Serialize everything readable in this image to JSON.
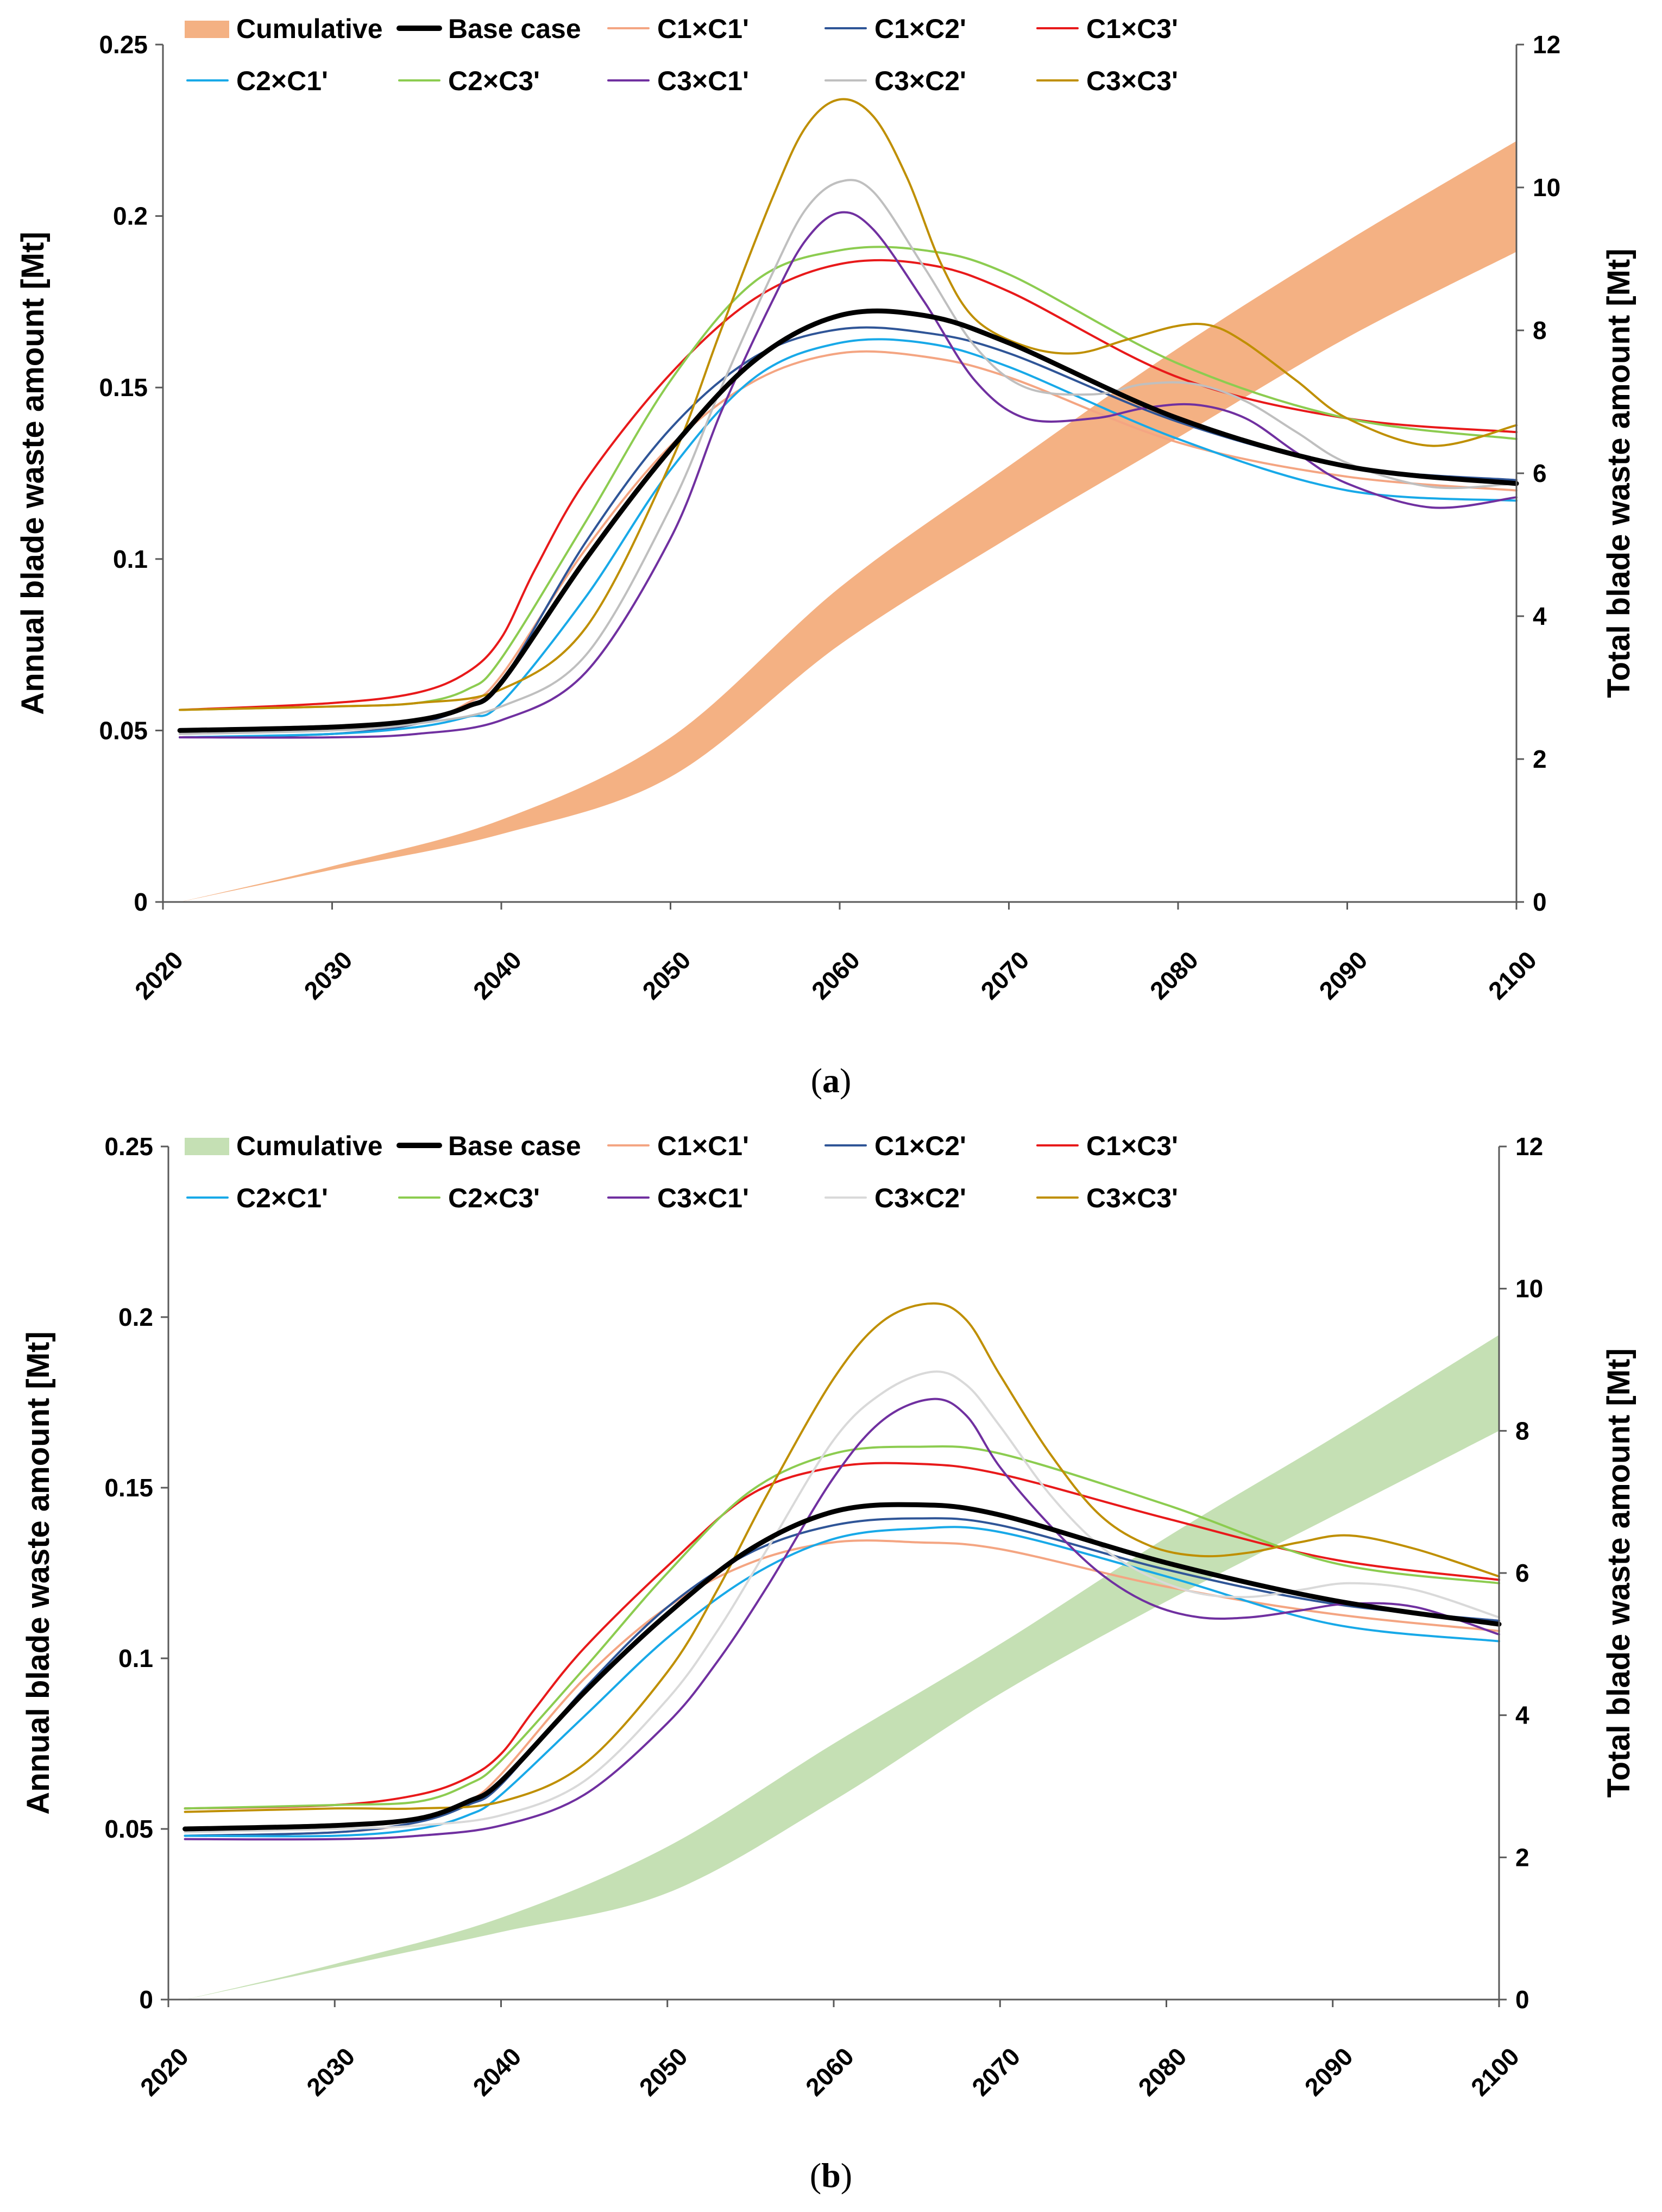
{
  "chart_data": [
    {
      "type": "line",
      "panel": "a",
      "caption_open": "(",
      "caption_letter": "a",
      "caption_close": ")",
      "ylabel_left": "Annual blade waste amount [Mt]",
      "ylabel_right": "Total blade waste amount [Mt]",
      "xlim": [
        2020,
        2100
      ],
      "x_ticks": [
        "2020",
        "2030",
        "2040",
        "2050",
        "2060",
        "2070",
        "2080",
        "2090",
        "2100"
      ],
      "ylim_left": [
        0,
        0.25
      ],
      "y_ticks_left": [
        "0",
        "0.05",
        "0.1",
        "0.15",
        "0.2",
        "0.25"
      ],
      "ylim_right": [
        0,
        12
      ],
      "y_ticks_right": [
        "0",
        "2",
        "4",
        "6",
        "8",
        "10",
        "12"
      ],
      "cumulative": {
        "name": "Cumulative",
        "color": "#f4b183",
        "x": [
          2021,
          2030,
          2040,
          2050,
          2060,
          2070,
          2080,
          2090,
          2100
        ],
        "lower": [
          0.0,
          0.45,
          0.95,
          1.75,
          3.6,
          5.1,
          6.5,
          7.9,
          9.1
        ],
        "upper": [
          0.0,
          0.5,
          1.15,
          2.3,
          4.4,
          6.1,
          7.75,
          9.25,
          10.65
        ]
      },
      "series": [
        {
          "name": "Base case",
          "color": "#000000",
          "width": 9,
          "x": [
            2021,
            2030,
            2035,
            2038,
            2040,
            2045,
            2050,
            2055,
            2060,
            2065,
            2070,
            2080,
            2090,
            2100
          ],
          "values": [
            0.05,
            0.051,
            0.053,
            0.057,
            0.064,
            0.1,
            0.132,
            0.158,
            0.171,
            0.171,
            0.163,
            0.141,
            0.127,
            0.122
          ]
        },
        {
          "name": "C1×C1'",
          "color": "#f4a582",
          "width": 4,
          "x": [
            2021,
            2030,
            2035,
            2038,
            2040,
            2045,
            2050,
            2055,
            2060,
            2065,
            2070,
            2080,
            2090,
            2100
          ],
          "values": [
            0.048,
            0.049,
            0.052,
            0.058,
            0.066,
            0.103,
            0.133,
            0.152,
            0.16,
            0.159,
            0.153,
            0.134,
            0.124,
            0.12
          ]
        },
        {
          "name": "C1×C2'",
          "color": "#2f5597",
          "width": 4,
          "x": [
            2021,
            2030,
            2035,
            2038,
            2040,
            2045,
            2050,
            2055,
            2060,
            2065,
            2070,
            2080,
            2090,
            2100
          ],
          "values": [
            0.048,
            0.049,
            0.052,
            0.057,
            0.064,
            0.105,
            0.138,
            0.159,
            0.167,
            0.166,
            0.16,
            0.14,
            0.127,
            0.123
          ]
        },
        {
          "name": "C1×C3'",
          "color": "#e8191a",
          "width": 4,
          "x": [
            2021,
            2030,
            2035,
            2038,
            2040,
            2042,
            2045,
            2050,
            2055,
            2060,
            2065,
            2070,
            2080,
            2090,
            2100
          ],
          "values": [
            0.056,
            0.058,
            0.061,
            0.067,
            0.077,
            0.097,
            0.123,
            0.154,
            0.176,
            0.186,
            0.186,
            0.178,
            0.153,
            0.141,
            0.137
          ]
        },
        {
          "name": "C2×C1'",
          "color": "#18a9e8",
          "width": 4,
          "x": [
            2021,
            2030,
            2035,
            2038,
            2040,
            2045,
            2050,
            2055,
            2060,
            2065,
            2070,
            2080,
            2090,
            2100
          ],
          "values": [
            0.048,
            0.049,
            0.051,
            0.054,
            0.058,
            0.089,
            0.126,
            0.153,
            0.163,
            0.163,
            0.156,
            0.135,
            0.12,
            0.117
          ]
        },
        {
          "name": "C2×C3'",
          "color": "#8ccc50",
          "width": 4,
          "x": [
            2021,
            2030,
            2035,
            2038,
            2040,
            2045,
            2050,
            2055,
            2060,
            2065,
            2070,
            2080,
            2090,
            2100
          ],
          "values": [
            0.056,
            0.057,
            0.058,
            0.062,
            0.071,
            0.111,
            0.152,
            0.181,
            0.19,
            0.19,
            0.183,
            0.157,
            0.141,
            0.135
          ]
        },
        {
          "name": "C3×C1'",
          "color": "#7030a0",
          "width": 4,
          "x": [
            2021,
            2030,
            2035,
            2040,
            2045,
            2050,
            2053,
            2056,
            2058,
            2060,
            2062,
            2065,
            2068,
            2071,
            2075,
            2078,
            2081,
            2084,
            2087,
            2090,
            2095,
            2100
          ],
          "values": [
            0.048,
            0.048,
            0.049,
            0.053,
            0.067,
            0.106,
            0.143,
            0.175,
            0.193,
            0.201,
            0.196,
            0.175,
            0.152,
            0.141,
            0.141,
            0.144,
            0.145,
            0.141,
            0.131,
            0.122,
            0.115,
            0.118
          ]
        },
        {
          "name": "C3×C2'",
          "color": "#bfbfbf",
          "width": 4,
          "x": [
            2021,
            2030,
            2035,
            2040,
            2045,
            2050,
            2053,
            2056,
            2058,
            2060,
            2062,
            2065,
            2068,
            2071,
            2075,
            2078,
            2081,
            2084,
            2087,
            2090,
            2095,
            2100
          ],
          "values": [
            0.049,
            0.05,
            0.052,
            0.057,
            0.072,
            0.115,
            0.15,
            0.183,
            0.202,
            0.21,
            0.207,
            0.185,
            0.162,
            0.15,
            0.148,
            0.151,
            0.151,
            0.146,
            0.137,
            0.128,
            0.121,
            0.122
          ]
        },
        {
          "name": "C3×C3'",
          "color": "#bf8f00",
          "width": 4,
          "x": [
            2021,
            2030,
            2035,
            2040,
            2045,
            2050,
            2053,
            2056,
            2058,
            2060,
            2062,
            2064,
            2066,
            2068,
            2071,
            2074,
            2077,
            2080,
            2082,
            2084,
            2087,
            2090,
            2095,
            2100
          ],
          "values": [
            0.056,
            0.057,
            0.058,
            0.062,
            0.08,
            0.128,
            0.167,
            0.205,
            0.226,
            0.234,
            0.229,
            0.211,
            0.186,
            0.17,
            0.162,
            0.16,
            0.164,
            0.168,
            0.168,
            0.163,
            0.152,
            0.141,
            0.133,
            0.139
          ]
        }
      ]
    },
    {
      "type": "line",
      "panel": "b",
      "caption_open": "(",
      "caption_letter": "b",
      "caption_close": ")",
      "ylabel_left": "Annual blade waste amount [Mt]",
      "ylabel_right": "Total blade waste amount [Mt]",
      "xlim": [
        2020,
        2100
      ],
      "x_ticks": [
        "2020",
        "2030",
        "2040",
        "2050",
        "2060",
        "2070",
        "2080",
        "2090",
        "2100"
      ],
      "ylim_left": [
        0,
        0.25
      ],
      "y_ticks_left": [
        "0",
        "0.05",
        "0.1",
        "0.15",
        "0.2",
        "0.25"
      ],
      "ylim_right": [
        0,
        12
      ],
      "y_ticks_right": [
        "0",
        "2",
        "4",
        "6",
        "8",
        "10",
        "12"
      ],
      "cumulative": {
        "name": "Cumulative",
        "color": "#c5e0b4",
        "x": [
          2021,
          2030,
          2040,
          2050,
          2060,
          2070,
          2080,
          2090,
          2100
        ],
        "lower": [
          0.0,
          0.45,
          0.95,
          1.5,
          2.8,
          4.3,
          5.6,
          6.8,
          8.0
        ],
        "upper": [
          0.0,
          0.5,
          1.15,
          2.15,
          3.6,
          5.0,
          6.5,
          7.9,
          9.35
        ]
      },
      "series": [
        {
          "name": "Base case",
          "color": "#000000",
          "width": 9,
          "x": [
            2021,
            2030,
            2035,
            2038,
            2040,
            2045,
            2050,
            2055,
            2060,
            2065,
            2070,
            2080,
            2090,
            2100
          ],
          "values": [
            0.05,
            0.051,
            0.053,
            0.058,
            0.064,
            0.09,
            0.113,
            0.132,
            0.143,
            0.145,
            0.142,
            0.128,
            0.117,
            0.11
          ]
        },
        {
          "name": "C1×C1'",
          "color": "#f4a582",
          "width": 4,
          "x": [
            2021,
            2030,
            2035,
            2038,
            2040,
            2045,
            2050,
            2055,
            2060,
            2065,
            2070,
            2080,
            2090,
            2100
          ],
          "values": [
            0.048,
            0.049,
            0.052,
            0.058,
            0.066,
            0.094,
            0.115,
            0.128,
            0.134,
            0.134,
            0.132,
            0.121,
            0.113,
            0.108
          ]
        },
        {
          "name": "C1×C2'",
          "color": "#2f5597",
          "width": 4,
          "x": [
            2021,
            2030,
            2035,
            2038,
            2040,
            2045,
            2050,
            2055,
            2060,
            2065,
            2070,
            2080,
            2090,
            2100
          ],
          "values": [
            0.048,
            0.049,
            0.052,
            0.057,
            0.063,
            0.091,
            0.115,
            0.131,
            0.139,
            0.141,
            0.139,
            0.126,
            0.116,
            0.111
          ]
        },
        {
          "name": "C1×C3'",
          "color": "#e8191a",
          "width": 4,
          "x": [
            2021,
            2030,
            2035,
            2038,
            2040,
            2042,
            2045,
            2050,
            2055,
            2060,
            2065,
            2070,
            2080,
            2090,
            2100
          ],
          "values": [
            0.056,
            0.057,
            0.06,
            0.065,
            0.072,
            0.085,
            0.103,
            0.127,
            0.148,
            0.156,
            0.157,
            0.154,
            0.141,
            0.129,
            0.123
          ]
        },
        {
          "name": "C2×C1'",
          "color": "#18a9e8",
          "width": 4,
          "x": [
            2021,
            2030,
            2035,
            2038,
            2040,
            2045,
            2050,
            2055,
            2060,
            2065,
            2070,
            2080,
            2090,
            2100
          ],
          "values": [
            0.048,
            0.048,
            0.05,
            0.054,
            0.06,
            0.083,
            0.106,
            0.124,
            0.135,
            0.138,
            0.137,
            0.124,
            0.11,
            0.105
          ]
        },
        {
          "name": "C2×C3'",
          "color": "#8ccc50",
          "width": 4,
          "x": [
            2021,
            2030,
            2035,
            2038,
            2040,
            2045,
            2050,
            2055,
            2060,
            2065,
            2070,
            2080,
            2090,
            2100
          ],
          "values": [
            0.056,
            0.057,
            0.058,
            0.063,
            0.07,
            0.097,
            0.125,
            0.149,
            0.16,
            0.162,
            0.16,
            0.145,
            0.128,
            0.122
          ]
        },
        {
          "name": "C3×C1'",
          "color": "#7030a0",
          "width": 4,
          "x": [
            2021,
            2030,
            2035,
            2040,
            2045,
            2050,
            2053,
            2056,
            2060,
            2063,
            2066,
            2068,
            2070,
            2073,
            2076,
            2079,
            2082,
            2085,
            2088,
            2091,
            2095,
            2100
          ],
          "values": [
            0.047,
            0.047,
            0.048,
            0.051,
            0.06,
            0.081,
            0.099,
            0.121,
            0.153,
            0.17,
            0.176,
            0.171,
            0.156,
            0.139,
            0.125,
            0.116,
            0.112,
            0.112,
            0.114,
            0.116,
            0.115,
            0.107
          ]
        },
        {
          "name": "C3×C2'",
          "color": "#d9d9d9",
          "width": 4,
          "x": [
            2021,
            2030,
            2035,
            2040,
            2045,
            2050,
            2053,
            2056,
            2060,
            2063,
            2066,
            2068,
            2070,
            2073,
            2076,
            2079,
            2082,
            2085,
            2088,
            2091,
            2095,
            2100
          ],
          "values": [
            0.049,
            0.05,
            0.051,
            0.054,
            0.064,
            0.088,
            0.108,
            0.132,
            0.164,
            0.178,
            0.184,
            0.18,
            0.168,
            0.148,
            0.133,
            0.124,
            0.119,
            0.118,
            0.12,
            0.122,
            0.12,
            0.112
          ]
        },
        {
          "name": "C3×C3'",
          "color": "#bf8f00",
          "width": 4,
          "x": [
            2021,
            2030,
            2035,
            2040,
            2045,
            2050,
            2053,
            2056,
            2060,
            2063,
            2066,
            2068,
            2070,
            2073,
            2076,
            2079,
            2082,
            2085,
            2088,
            2091,
            2095,
            2100
          ],
          "values": [
            0.055,
            0.056,
            0.056,
            0.058,
            0.069,
            0.096,
            0.12,
            0.148,
            0.182,
            0.199,
            0.204,
            0.199,
            0.183,
            0.16,
            0.142,
            0.133,
            0.13,
            0.131,
            0.134,
            0.136,
            0.132,
            0.124
          ]
        }
      ]
    }
  ]
}
